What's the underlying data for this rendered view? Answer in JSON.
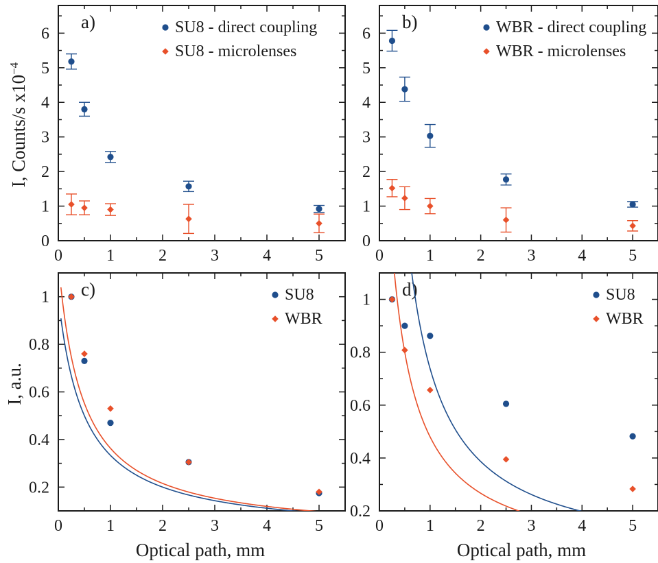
{
  "colors": {
    "su8": "#1f4e8c",
    "wbr": "#e8502a",
    "axis": "#1a1a1a"
  },
  "figure": {
    "ylabel_top_main": "I, Counts/s x10",
    "ylabel_top_exp": "−4",
    "ylabel_bottom": "I, a.u.",
    "xlabel_bottom": "Optical path,  mm"
  },
  "chart_data": [
    {
      "panel": "a)",
      "type": "scatter",
      "xlim": [
        0,
        5.5
      ],
      "ylim": [
        0,
        6.8
      ],
      "xticks": [
        0,
        1,
        2,
        3,
        4,
        5
      ],
      "yticks": [
        0,
        1,
        2,
        3,
        4,
        5,
        6
      ],
      "legend": "top-right",
      "series": [
        {
          "name": "SU8 - direct coupling",
          "color": "su8",
          "marker": "circle",
          "x": [
            0.25,
            0.5,
            1.0,
            2.5,
            5.0
          ],
          "y": [
            5.18,
            3.8,
            2.42,
            1.57,
            0.92
          ],
          "err": [
            0.22,
            0.2,
            0.16,
            0.15,
            0.1
          ]
        },
        {
          "name": "SU8 - microlenses",
          "color": "wbr",
          "marker": "diamond",
          "x": [
            0.25,
            0.5,
            1.0,
            2.5,
            5.0
          ],
          "y": [
            1.05,
            0.95,
            0.9,
            0.63,
            0.5
          ],
          "err": [
            0.3,
            0.2,
            0.17,
            0.42,
            0.27
          ]
        }
      ]
    },
    {
      "panel": "b)",
      "type": "scatter",
      "xlim": [
        0,
        5.5
      ],
      "ylim": [
        0,
        6.8
      ],
      "xticks": [
        0,
        1,
        2,
        3,
        4,
        5
      ],
      "yticks": [
        0,
        1,
        2,
        3,
        4,
        5,
        6
      ],
      "legend": "top-right",
      "series": [
        {
          "name": "WBR - direct coupling",
          "color": "su8",
          "marker": "circle",
          "x": [
            0.25,
            0.5,
            1.0,
            2.5,
            5.0
          ],
          "y": [
            5.78,
            4.38,
            3.03,
            1.77,
            1.05
          ],
          "err": [
            0.3,
            0.35,
            0.33,
            0.16,
            0.08
          ]
        },
        {
          "name": "WBR - microlenses",
          "color": "wbr",
          "marker": "diamond",
          "x": [
            0.25,
            0.5,
            1.0,
            2.5,
            5.0
          ],
          "y": [
            1.52,
            1.23,
            1.0,
            0.6,
            0.43
          ],
          "err": [
            0.25,
            0.33,
            0.22,
            0.35,
            0.15
          ]
        }
      ]
    },
    {
      "panel": "c)",
      "type": "scatter",
      "xlim": [
        0,
        5.5
      ],
      "ylim": [
        0.1,
        1.1
      ],
      "xticks": [
        0,
        1,
        2,
        3,
        4,
        5
      ],
      "yticks": [
        0.2,
        0.4,
        0.6,
        0.8,
        1.0
      ],
      "ytick_labels": [
        "0.2",
        "0.4",
        "0.6",
        "0.8",
        "1"
      ],
      "legend": "top-right",
      "series": [
        {
          "name": "SU8",
          "color": "su8",
          "marker": "circle",
          "x": [
            0.25,
            0.5,
            1.0,
            2.5,
            5.0
          ],
          "y": [
            1.0,
            0.73,
            0.47,
            0.305,
            0.175
          ],
          "fit": {
            "a": 0.5,
            "b": 0.5
          }
        },
        {
          "name": "WBR",
          "color": "wbr",
          "marker": "diamond",
          "x": [
            0.25,
            0.5,
            1.0,
            2.5,
            5.0
          ],
          "y": [
            1.0,
            0.76,
            0.53,
            0.305,
            0.18
          ],
          "fit": {
            "a": 0.53,
            "b": 0.46
          }
        }
      ]
    },
    {
      "panel": "d)",
      "type": "scatter",
      "xlim": [
        0,
        5.5
      ],
      "ylim": [
        0.2,
        1.1
      ],
      "xticks": [
        0,
        1,
        2,
        3,
        4,
        5
      ],
      "yticks": [
        0.2,
        0.4,
        0.6,
        0.8,
        1.0
      ],
      "ytick_labels": [
        "0.2",
        "0.4",
        "0.6",
        "0.8",
        "1"
      ],
      "legend": "top-right",
      "series": [
        {
          "name": "SU8",
          "color": "su8",
          "marker": "circle",
          "x": [
            0.25,
            0.5,
            1.0,
            2.5,
            5.0
          ],
          "y": [
            1.0,
            0.9,
            0.862,
            0.605,
            0.482
          ],
          "fit": {
            "a": 0.812,
            "b": 0.1
          }
        },
        {
          "name": "WBR",
          "color": "wbr",
          "marker": "diamond",
          "x": [
            0.25,
            0.5,
            1.0,
            2.5,
            5.0
          ],
          "y": [
            1.0,
            0.808,
            0.657,
            0.395,
            0.283
          ],
          "fit": {
            "a": 0.6,
            "b": 0.25
          }
        }
      ]
    }
  ]
}
